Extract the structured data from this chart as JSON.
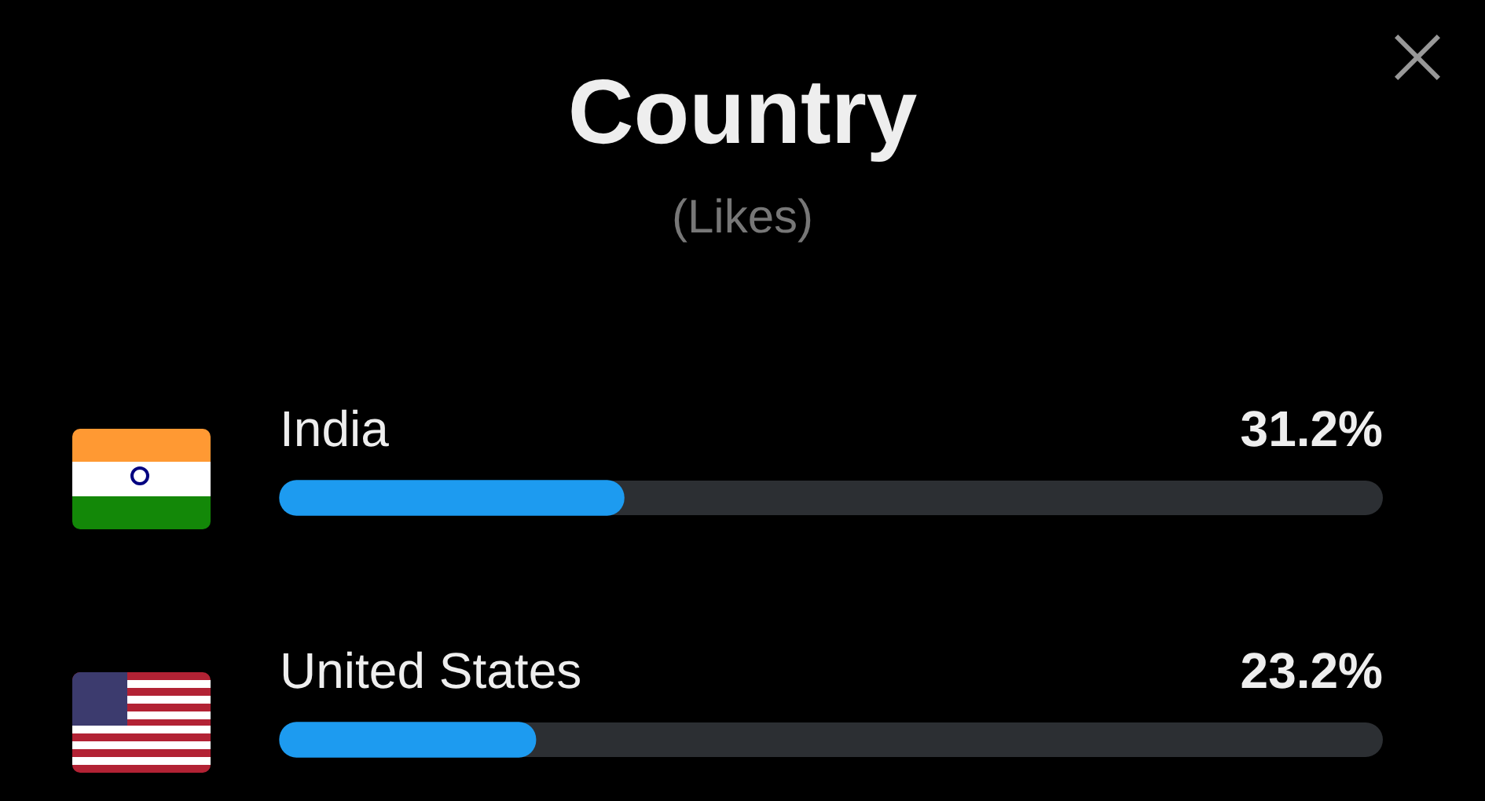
{
  "chart_data": {
    "type": "bar",
    "orientation": "horizontal",
    "title": "Country",
    "subtitle": "(Likes)",
    "categories": [
      "India",
      "United States"
    ],
    "values": [
      31.2,
      23.2
    ],
    "value_labels": [
      "31.2%",
      "23.2%"
    ],
    "color": "#1d9bf0",
    "xlim": [
      0,
      100
    ],
    "tick_labels": false,
    "legend": false
  }
}
